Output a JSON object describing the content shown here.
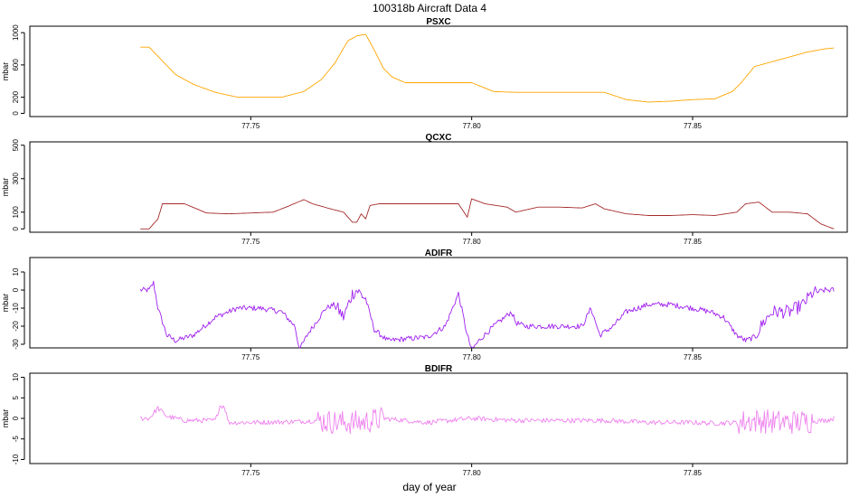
{
  "header": {
    "title": "100318b   Aircraft Data 4"
  },
  "chart_data": {
    "type": "line",
    "xlabel": "day of year",
    "xlim": [
      77.7,
      77.885
    ],
    "x_ticks": [
      77.75,
      77.8,
      77.85
    ],
    "x_tick_labels": [
      "77.75",
      "77.80",
      "77.85"
    ],
    "panels": [
      {
        "title": "PSXC",
        "ylabel": "mbar",
        "ylim": [
          -40,
          1080
        ],
        "y_ticks": [
          0,
          200,
          600,
          1000
        ],
        "y_tick_labels": [
          "0",
          "200",
          "600",
          "1000"
        ],
        "color": "#FFA500",
        "noise": 0,
        "series": [
          {
            "x": [
              77.725,
              77.727,
              77.73,
              77.733,
              77.737,
              77.742,
              77.747,
              77.752,
              77.757,
              77.762,
              77.766,
              77.769,
              77.772,
              77.774,
              77.776,
              77.778,
              77.78,
              77.782,
              77.785,
              77.79,
              77.8,
              77.805,
              77.81,
              77.82,
              77.83,
              77.835,
              77.84,
              77.845,
              77.85,
              77.855,
              77.859,
              77.861,
              77.864,
              77.868,
              77.872,
              77.876,
              77.88,
              77.882
            ],
            "y": [
              820,
              820,
              650,
              480,
              360,
              260,
              200,
              200,
              200,
              270,
              420,
              620,
              900,
              960,
              980,
              780,
              560,
              450,
              380,
              380,
              380,
              270,
              260,
              260,
              260,
              170,
              140,
              150,
              170,
              180,
              270,
              380,
              580,
              640,
              700,
              760,
              800,
              810
            ]
          }
        ]
      },
      {
        "title": "QCXC",
        "ylabel": "mbar",
        "ylim": [
          -20,
          520
        ],
        "y_ticks": [
          0,
          100,
          300,
          500
        ],
        "y_tick_labels": [
          "0",
          "100",
          "300",
          "500"
        ],
        "color": "#A52A2A",
        "noise": 0,
        "series": [
          {
            "x": [
              77.725,
              77.727,
              77.729,
              77.73,
              77.735,
              77.74,
              77.745,
              77.75,
              77.755,
              77.758,
              77.762,
              77.764,
              77.768,
              77.771,
              77.773,
              77.774,
              77.775,
              77.776,
              77.777,
              77.779,
              77.785,
              77.793,
              77.797,
              77.799,
              77.8,
              77.803,
              77.808,
              77.81,
              77.815,
              77.82,
              77.825,
              77.828,
              77.83,
              77.835,
              77.84,
              77.845,
              77.85,
              77.855,
              77.86,
              77.862,
              77.865,
              77.868,
              77.872,
              77.876,
              77.879,
              77.882
            ],
            "y": [
              0,
              0,
              60,
              150,
              150,
              95,
              90,
              95,
              100,
              130,
              175,
              150,
              120,
              100,
              40,
              40,
              90,
              60,
              140,
              150,
              150,
              150,
              150,
              70,
              180,
              150,
              130,
              100,
              130,
              130,
              125,
              150,
              120,
              90,
              80,
              80,
              85,
              80,
              100,
              150,
              160,
              100,
              100,
              90,
              30,
              0
            ]
          }
        ]
      },
      {
        "title": "ADIFR",
        "ylabel": "mbar",
        "ylim": [
          -32,
          18
        ],
        "y_ticks": [
          -30,
          -20,
          -10,
          0,
          10
        ],
        "y_tick_labels": [
          "-30",
          "-20",
          "-10",
          "0",
          "10"
        ],
        "color": "#A020F0",
        "noise": 1.5,
        "series": [
          {
            "x": [
              77.725,
              77.727,
              77.728,
              77.729,
              77.731,
              77.733,
              77.737,
              77.742,
              77.747,
              77.752,
              77.757,
              77.76,
              77.761,
              77.763,
              77.765,
              77.767,
              77.769,
              77.771,
              77.773,
              77.774,
              77.776,
              77.778,
              77.781,
              77.785,
              77.79,
              77.794,
              77.797,
              77.799,
              77.8,
              77.802,
              77.805,
              77.809,
              77.81,
              77.812,
              77.82,
              77.825,
              77.827,
              77.829,
              77.832,
              77.835,
              77.84,
              77.845,
              77.85,
              77.854,
              77.857,
              77.86,
              77.862,
              77.864,
              77.866,
              77.868,
              77.872,
              77.875,
              77.877,
              77.88,
              77.882
            ],
            "y": [
              0,
              0,
              4,
              -10,
              -25,
              -28,
              -25,
              -15,
              -10,
              -10,
              -12,
              -20,
              -33,
              -24,
              -17,
              -10,
              -8,
              -15,
              -2,
              0,
              -5,
              -22,
              -28,
              -27,
              -26,
              -20,
              -2,
              -25,
              -33,
              -27,
              -20,
              -12,
              -18,
              -20,
              -20,
              -20,
              -10,
              -25,
              -20,
              -12,
              -8,
              -8,
              -10,
              -12,
              -15,
              -25,
              -28,
              -26,
              -18,
              -12,
              -12,
              -8,
              -2,
              0,
              0
            ]
          }
        ]
      },
      {
        "title": "BDIFR",
        "ylabel": "mbar",
        "ylim": [
          -11,
          11
        ],
        "y_ticks": [
          -10,
          -5,
          0,
          5,
          10
        ],
        "y_tick_labels": [
          "-10",
          "-5",
          "0",
          "5",
          "10"
        ],
        "color": "#EE82EE",
        "noise": 0.6,
        "series": [
          {
            "x": [
              77.725,
              77.727,
              77.729,
              77.731,
              77.735,
              77.742,
              77.743,
              77.744,
              77.745,
              77.75,
              77.76,
              77.765,
              77.77,
              77.775,
              77.78,
              77.79,
              77.8,
              77.81,
              77.82,
              77.83,
              77.84,
              77.85,
              77.855,
              77.86,
              77.865,
              77.87,
              77.875,
              77.88,
              77.882
            ],
            "y": [
              0,
              0,
              2.5,
              0.5,
              -0.5,
              -0.5,
              3,
              3,
              -1,
              -1,
              -0.8,
              -0.5,
              -1,
              -1,
              0,
              -1,
              0,
              -0.5,
              -0.5,
              -0.5,
              -1,
              -1,
              -1.2,
              -1,
              -0.5,
              -1,
              -0.8,
              -0.5,
              0
            ]
          }
        ]
      }
    ]
  }
}
